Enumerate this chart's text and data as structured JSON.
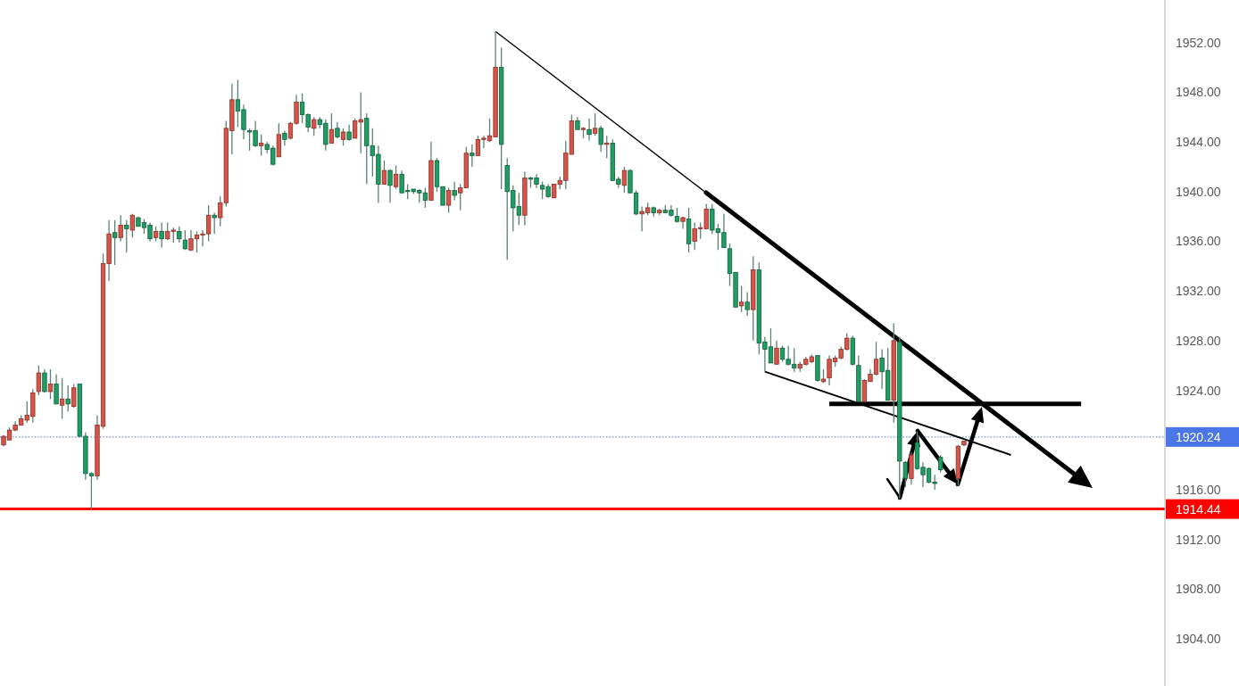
{
  "chart_data": {
    "type": "candlestick",
    "categories": [
      null,
      null,
      null,
      null,
      null,
      null,
      null,
      null,
      null,
      null,
      null,
      null,
      null,
      null,
      null,
      null,
      null,
      null,
      null,
      null,
      null,
      null,
      null,
      null,
      null,
      null,
      null,
      null,
      null,
      null,
      null,
      null,
      null,
      null,
      null,
      null,
      null,
      null,
      null,
      null,
      null,
      null,
      null,
      null,
      null,
      null,
      null,
      null,
      null,
      null,
      null,
      null,
      null,
      null,
      null,
      null,
      null,
      null,
      null,
      null,
      null,
      null,
      null,
      null,
      null,
      null,
      null,
      null,
      null,
      null,
      null,
      null,
      null,
      null,
      null,
      null,
      null,
      null,
      null,
      null,
      null,
      null,
      null,
      null,
      null,
      null,
      null,
      null,
      null,
      null,
      null,
      null,
      null,
      null,
      null,
      null,
      null,
      null,
      null,
      null,
      null,
      null,
      null,
      null,
      null,
      null,
      null,
      null,
      null,
      null,
      null,
      null,
      null,
      null,
      null,
      null,
      null,
      null,
      null,
      null,
      null,
      null,
      null,
      null,
      null,
      null,
      null,
      null,
      null,
      null,
      null,
      null,
      null,
      null,
      null,
      null,
      null,
      null,
      null,
      null,
      null,
      null,
      null,
      null,
      null,
      null,
      null,
      null,
      null,
      null,
      null,
      null,
      null,
      null,
      null,
      null,
      null,
      null,
      null,
      null,
      null,
      null,
      null,
      null,
      null,
      null,
      null,
      null,
      null,
      null,
      null,
      null,
      null,
      null,
      null,
      null,
      null,
      null,
      null,
      null,
      null,
      null,
      null,
      null,
      null,
      null,
      null,
      null,
      null,
      null,
      null,
      null,
      null,
      null,
      null,
      null,
      null,
      null,
      null
    ],
    "ohlc": [
      [
        1919.6,
        1920.4,
        1919.5,
        1920.3
      ],
      [
        1920.0,
        1921.0,
        1920.0,
        1920.8
      ],
      [
        1920.8,
        1921.5,
        1920.7,
        1921.2
      ],
      [
        1921.2,
        1922.0,
        1921.2,
        1921.7
      ],
      [
        1921.6,
        1923.1,
        1921.4,
        1922.0
      ],
      [
        1921.9,
        1924.1,
        1921.4,
        1923.8
      ],
      [
        1923.9,
        1926.0,
        1923.6,
        1925.4
      ],
      [
        1925.4,
        1925.7,
        1923.8,
        1923.9
      ],
      [
        1923.9,
        1925.7,
        1923.3,
        1924.5
      ],
      [
        1924.5,
        1925.3,
        1922.9,
        1922.9
      ],
      [
        1922.8,
        1925.0,
        1921.7,
        1923.3
      ],
      [
        1923.3,
        1924.4,
        1922.3,
        1922.9
      ],
      [
        1922.7,
        1924.5,
        1922.6,
        1924.2
      ],
      [
        1924.5,
        1924.5,
        1920.2,
        1920.3
      ],
      [
        1920.3,
        1920.6,
        1916.8,
        1917.3
      ],
      [
        1917.3,
        1917.4,
        1914.4,
        1917.1
      ],
      [
        1917.1,
        1922.0,
        1916.8,
        1921.2
      ],
      [
        1921.1,
        1935.0,
        1920.9,
        1934.2
      ],
      [
        1934.2,
        1937.7,
        1932.8,
        1936.6
      ],
      [
        1936.7,
        1937.7,
        1934.1,
        1936.3
      ],
      [
        1936.3,
        1938.1,
        1936.0,
        1937.3
      ],
      [
        1937.3,
        1937.7,
        1935.1,
        1937.0
      ],
      [
        1936.9,
        1938.2,
        1936.3,
        1938.1
      ],
      [
        1937.9,
        1938.0,
        1937.2,
        1937.2
      ],
      [
        1937.5,
        1937.8,
        1936.6,
        1937.1
      ],
      [
        1937.3,
        1937.5,
        1936.0,
        1936.2
      ],
      [
        1936.3,
        1937.2,
        1936.0,
        1936.8
      ],
      [
        1936.8,
        1937.5,
        1935.5,
        1936.2
      ],
      [
        1936.2,
        1937.5,
        1936.1,
        1936.8
      ],
      [
        1936.8,
        1937.1,
        1935.9,
        1936.9
      ],
      [
        1936.8,
        1937.2,
        1935.9,
        1936.2
      ],
      [
        1936.1,
        1936.9,
        1935.3,
        1935.4
      ],
      [
        1935.3,
        1936.9,
        1935.2,
        1936.2
      ],
      [
        1936.2,
        1936.8,
        1935.1,
        1936.5
      ],
      [
        1936.5,
        1936.9,
        1935.6,
        1936.6
      ],
      [
        1936.6,
        1938.9,
        1936.0,
        1938.1
      ],
      [
        1938.1,
        1938.3,
        1936.6,
        1937.9
      ],
      [
        1937.9,
        1939.6,
        1937.2,
        1939.1
      ],
      [
        1939.1,
        1945.7,
        1938.8,
        1945.1
      ],
      [
        1944.9,
        1948.7,
        1943.0,
        1947.4
      ],
      [
        1947.4,
        1949.0,
        1945.2,
        1946.5
      ],
      [
        1946.6,
        1947.0,
        1944.2,
        1945.0
      ],
      [
        1944.9,
        1945.1,
        1943.3,
        1944.8
      ],
      [
        1944.9,
        1945.7,
        1943.6,
        1943.7
      ],
      [
        1943.7,
        1944.6,
        1942.9,
        1943.9
      ],
      [
        1943.8,
        1944.0,
        1943.1,
        1943.4
      ],
      [
        1943.5,
        1943.7,
        1942.1,
        1942.2
      ],
      [
        1942.8,
        1945.5,
        1942.8,
        1944.6
      ],
      [
        1944.7,
        1944.9,
        1943.7,
        1944.2
      ],
      [
        1944.3,
        1945.6,
        1944.2,
        1945.5
      ],
      [
        1945.5,
        1947.8,
        1945.4,
        1947.2
      ],
      [
        1947.2,
        1947.9,
        1945.5,
        1946.2
      ],
      [
        1946.2,
        1946.3,
        1944.8,
        1945.2
      ],
      [
        1945.1,
        1946.0,
        1944.5,
        1945.8
      ],
      [
        1945.8,
        1946.0,
        1945.1,
        1945.4
      ],
      [
        1945.5,
        1945.8,
        1943.3,
        1943.8
      ],
      [
        1943.9,
        1946.3,
        1943.9,
        1945.0
      ],
      [
        1945.1,
        1945.6,
        1944.3,
        1944.4
      ],
      [
        1944.2,
        1945.1,
        1943.7,
        1944.8
      ],
      [
        1944.8,
        1945.4,
        1944.1,
        1944.2
      ],
      [
        1944.3,
        1945.9,
        1944.3,
        1945.7
      ],
      [
        1945.6,
        1948.0,
        1943.1,
        1945.8
      ],
      [
        1945.9,
        1946.3,
        1940.6,
        1943.7
      ],
      [
        1943.7,
        1945.1,
        1941.2,
        1942.9
      ],
      [
        1943.0,
        1943.7,
        1939.1,
        1940.6
      ],
      [
        1940.6,
        1942.5,
        1940.6,
        1941.7
      ],
      [
        1941.7,
        1941.8,
        1939.1,
        1940.5
      ],
      [
        1940.4,
        1942.1,
        1940.2,
        1941.4
      ],
      [
        1941.4,
        1941.7,
        1939.9,
        1939.9
      ],
      [
        1940.1,
        1940.6,
        1939.4,
        1940.0
      ],
      [
        1940.2,
        1940.2,
        1939.8,
        1940.0
      ],
      [
        1940.1,
        1940.2,
        1939.1,
        1939.9
      ],
      [
        1939.9,
        1940.3,
        1938.7,
        1939.3
      ],
      [
        1939.3,
        1944.0,
        1939.3,
        1942.5
      ],
      [
        1942.5,
        1942.7,
        1940.0,
        1940.4
      ],
      [
        1940.4,
        1940.4,
        1938.9,
        1938.9
      ],
      [
        1938.9,
        1940.3,
        1938.3,
        1940.1
      ],
      [
        1940.1,
        1940.8,
        1939.3,
        1939.7
      ],
      [
        1939.9,
        1940.6,
        1938.5,
        1940.3
      ],
      [
        1940.3,
        1943.6,
        1940.3,
        1943.1
      ],
      [
        1943.1,
        1943.8,
        1942.0,
        1942.9
      ],
      [
        1942.9,
        1944.5,
        1942.9,
        1944.2
      ],
      [
        1944.2,
        1944.5,
        1943.5,
        1944.3
      ],
      [
        1944.1,
        1945.9,
        1944.0,
        1944.5
      ],
      [
        1944.4,
        1952.9,
        1944.4,
        1950.0
      ],
      [
        1950.0,
        1951.6,
        1940.2,
        1943.8
      ],
      [
        1942.1,
        1942.7,
        1934.5,
        1940.0
      ],
      [
        1940.1,
        1940.5,
        1936.8,
        1938.7
      ],
      [
        1938.8,
        1939.9,
        1937.3,
        1938.1
      ],
      [
        1938.1,
        1941.6,
        1937.3,
        1941.1
      ],
      [
        1941.1,
        1941.2,
        1940.3,
        1941.0
      ],
      [
        1941.1,
        1941.4,
        1940.3,
        1940.6
      ],
      [
        1940.5,
        1940.8,
        1939.4,
        1940.2
      ],
      [
        1940.4,
        1940.6,
        1939.5,
        1939.6
      ],
      [
        1939.5,
        1940.6,
        1939.5,
        1940.6
      ],
      [
        1940.6,
        1941.2,
        1940.2,
        1940.9
      ],
      [
        1940.9,
        1944.1,
        1940.2,
        1943.1
      ],
      [
        1943.0,
        1946.2,
        1943.0,
        1945.7
      ],
      [
        1945.7,
        1946.0,
        1945.0,
        1945.0
      ],
      [
        1945.0,
        1945.2,
        1944.3,
        1945.1
      ],
      [
        1945.0,
        1945.9,
        1944.1,
        1944.6
      ],
      [
        1944.7,
        1946.3,
        1944.5,
        1945.1
      ],
      [
        1945.1,
        1945.3,
        1943.2,
        1943.8
      ],
      [
        1943.8,
        1944.5,
        1942.7,
        1943.9
      ],
      [
        1943.9,
        1944.2,
        1940.9,
        1940.9
      ],
      [
        1941.0,
        1941.2,
        1940.3,
        1940.6
      ],
      [
        1940.5,
        1942.0,
        1939.9,
        1941.7
      ],
      [
        1941.7,
        1941.8,
        1939.9,
        1939.9
      ],
      [
        1939.9,
        1940.1,
        1938.1,
        1938.2
      ],
      [
        1938.2,
        1938.8,
        1936.8,
        1938.4
      ],
      [
        1938.3,
        1939.1,
        1938.1,
        1938.7
      ],
      [
        1938.7,
        1938.8,
        1938.0,
        1938.3
      ],
      [
        1938.3,
        1938.6,
        1938.1,
        1938.5
      ],
      [
        1938.5,
        1938.9,
        1938.3,
        1938.3
      ],
      [
        1938.5,
        1938.9,
        1938.0,
        1938.1
      ],
      [
        1938.0,
        1938.7,
        1937.5,
        1937.6
      ],
      [
        1937.6,
        1938.0,
        1937.0,
        1937.9
      ],
      [
        1937.8,
        1938.7,
        1935.1,
        1935.8
      ],
      [
        1936.0,
        1937.5,
        1935.3,
        1937.0
      ],
      [
        1937.0,
        1937.5,
        1936.2,
        1937.1
      ],
      [
        1937.0,
        1939.0,
        1937.0,
        1938.6
      ],
      [
        1938.6,
        1939.0,
        1936.6,
        1936.9
      ],
      [
        1937.0,
        1937.4,
        1935.3,
        1936.7
      ],
      [
        1936.7,
        1938.2,
        1935.5,
        1935.5
      ],
      [
        1935.4,
        1935.8,
        1932.4,
        1933.4
      ],
      [
        1933.5,
        1933.5,
        1930.7,
        1930.7
      ],
      [
        1930.8,
        1932.4,
        1930.3,
        1931.1
      ],
      [
        1931.1,
        1931.9,
        1930.0,
        1930.5
      ],
      [
        1930.5,
        1934.8,
        1928.0,
        1933.7
      ],
      [
        1933.7,
        1934.3,
        1926.9,
        1927.8
      ],
      [
        1927.9,
        1928.3,
        1925.5,
        1927.3
      ],
      [
        1927.5,
        1929.0,
        1926.2,
        1926.2
      ],
      [
        1926.1,
        1928.0,
        1926.1,
        1927.4
      ],
      [
        1927.4,
        1927.6,
        1926.3,
        1926.5
      ],
      [
        1926.5,
        1927.6,
        1926.0,
        1926.1
      ],
      [
        1926.1,
        1927.4,
        1925.5,
        1925.8
      ],
      [
        1925.8,
        1926.3,
        1925.5,
        1926.1
      ],
      [
        1926.1,
        1926.7,
        1926.0,
        1926.5
      ],
      [
        1926.3,
        1926.9,
        1926.2,
        1926.7
      ],
      [
        1926.8,
        1926.8,
        1924.7,
        1924.8
      ],
      [
        1924.7,
        1925.7,
        1924.6,
        1924.9
      ],
      [
        1925.0,
        1926.8,
        1924.4,
        1926.5
      ],
      [
        1926.3,
        1926.8,
        1925.9,
        1926.6
      ],
      [
        1926.6,
        1927.5,
        1926.5,
        1927.3
      ],
      [
        1927.3,
        1928.6,
        1927.2,
        1928.2
      ],
      [
        1928.2,
        1928.4,
        1926.0,
        1926.1
      ],
      [
        1926.0,
        1926.8,
        1923.1,
        1923.1
      ],
      [
        1923.1,
        1924.9,
        1923.1,
        1924.8
      ],
      [
        1924.7,
        1925.7,
        1924.7,
        1925.3
      ],
      [
        1925.3,
        1927.9,
        1925.2,
        1926.5
      ],
      [
        1926.6,
        1927.3,
        1924.1,
        1925.5
      ],
      [
        1925.6,
        1927.4,
        1923.2,
        1923.2
      ],
      [
        1923.2,
        1929.4,
        1921.4,
        1928.0
      ],
      [
        1927.9,
        1928.3,
        1915.3,
        1918.3
      ],
      [
        1918.2,
        1918.3,
        1916.2,
        1916.9
      ],
      [
        1916.9,
        1919.0,
        1916.4,
        1918.8
      ],
      [
        1919.8,
        1920.7,
        1917.6,
        1917.7
      ],
      [
        1917.8,
        1918.2,
        1916.2,
        1917.2
      ],
      [
        1917.7,
        1917.8,
        1916.5,
        1916.6
      ],
      [
        1916.6,
        1917.2,
        1916.0,
        1916.5
      ],
      [
        1918.6,
        1918.8,
        1917.4,
        1917.6
      ],
      null,
      null,
      [
        1916.9,
        1919.6,
        1916.3,
        1919.5
      ],
      [
        1919.6,
        1919.9,
        1919.5,
        1919.9
      ],
      null,
      null,
      null,
      null,
      null,
      null,
      null,
      null,
      null,
      null,
      null,
      null,
      null,
      null,
      null,
      null,
      null,
      null,
      null,
      null,
      null,
      null,
      null,
      null,
      null,
      null,
      null,
      null,
      null,
      null,
      null,
      null,
      null,
      null
    ],
    "series": [
      {
        "type": "line",
        "color": "#000000",
        "values": [
          null,
          null,
          null,
          null,
          null,
          null,
          null,
          null,
          null,
          null,
          null,
          null,
          null,
          null,
          null,
          null,
          null,
          null,
          null,
          null,
          null,
          null,
          null,
          null,
          null,
          null,
          null,
          null,
          null,
          null,
          null,
          null,
          null,
          null,
          null,
          null,
          null,
          null,
          null,
          null,
          null,
          null,
          null,
          null,
          null,
          null,
          null,
          null,
          null,
          null,
          null,
          null,
          null,
          null,
          null,
          null,
          null,
          null,
          null,
          null,
          null,
          null,
          null,
          null,
          null,
          null,
          null,
          null,
          null,
          null,
          null,
          null,
          null,
          null,
          null,
          null,
          null,
          null,
          null,
          null,
          null,
          null,
          null,
          null,
          1952.9,
          null,
          null,
          null,
          null,
          null,
          null,
          null,
          null,
          null,
          null,
          null,
          null,
          null,
          null,
          null,
          null,
          null,
          null,
          null,
          null,
          null,
          null,
          null,
          null,
          null,
          null,
          null,
          null,
          null,
          null,
          null,
          null,
          null,
          null,
          null,
          1939.9,
          null,
          null,
          null,
          null,
          null,
          null,
          null,
          null,
          null,
          null,
          null,
          null,
          null,
          null,
          null,
          null,
          null,
          null,
          null,
          null,
          null,
          null,
          null,
          null,
          null,
          null,
          null,
          null,
          null,
          null,
          null,
          null,
          null,
          null,
          null,
          null,
          null,
          null,
          null,
          null,
          null,
          null,
          null,
          null,
          null,
          null,
          null,
          null,
          null,
          null,
          null,
          null,
          null,
          null,
          null,
          null,
          null,
          null,
          null,
          null,
          null,
          null,
          null,
          null,
          null,
          null,
          null,
          null,
          null,
          null,
          null,
          null,
          null,
          null,
          null,
          null,
          null,
          null
        ]
      },
      {
        "type": "line",
        "color": "#000000",
        "values": [
          null,
          null,
          null,
          null,
          null,
          null,
          null,
          null,
          null,
          null,
          null,
          null,
          null,
          null,
          null,
          null,
          null,
          null,
          null,
          null,
          null,
          null,
          null,
          null,
          null,
          null,
          null,
          null,
          null,
          null,
          null,
          null,
          null,
          null,
          null,
          null,
          null,
          null,
          null,
          null,
          null,
          null,
          null,
          null,
          null,
          null,
          null,
          null,
          null,
          null,
          null,
          null,
          null,
          null,
          null,
          null,
          null,
          null,
          null,
          null,
          null,
          null,
          null,
          null,
          null,
          null,
          null,
          null,
          null,
          null,
          null,
          null,
          null,
          null,
          null,
          null,
          null,
          null,
          null,
          null,
          null,
          null,
          null,
          null,
          null,
          null,
          null,
          null,
          null,
          null,
          null,
          null,
          null,
          null,
          null,
          null,
          null,
          null,
          null,
          null,
          null,
          null,
          null,
          null,
          null,
          null,
          null,
          null,
          null,
          null,
          null,
          null,
          null,
          null,
          null,
          null,
          null,
          null,
          null,
          null,
          null,
          null,
          null,
          null,
          null,
          null,
          null,
          null,
          null,
          null,
          null,
          null,
          null,
          null,
          null,
          null,
          null,
          null,
          null,
          null,
          null,
          1922.9,
          null,
          null,
          null,
          null,
          null,
          null,
          null,
          null,
          null,
          null,
          null,
          null,
          null,
          null,
          null,
          null,
          null,
          null,
          null,
          null,
          null,
          null,
          null,
          null,
          null,
          null,
          null,
          null,
          null,
          null,
          null,
          null,
          null,
          null,
          null,
          null,
          null,
          null,
          null,
          null,
          null,
          null,
          1922.9,
          null,
          null,
          null,
          null,
          null,
          null,
          null,
          null,
          null,
          null,
          null,
          null,
          null,
          null
        ]
      },
      {
        "type": "line",
        "color": "#000000",
        "values": [
          null,
          null,
          null,
          null,
          null,
          null,
          null,
          null,
          null,
          null,
          null,
          null,
          null,
          null,
          null,
          null,
          null,
          null,
          null,
          null,
          null,
          null,
          null,
          null,
          null,
          null,
          null,
          null,
          null,
          null,
          null,
          null,
          null,
          null,
          null,
          null,
          null,
          null,
          null,
          null,
          null,
          null,
          null,
          null,
          null,
          null,
          null,
          null,
          null,
          null,
          null,
          null,
          null,
          null,
          null,
          null,
          null,
          null,
          null,
          null,
          null,
          null,
          null,
          null,
          null,
          null,
          null,
          null,
          null,
          null,
          null,
          null,
          null,
          null,
          null,
          null,
          null,
          null,
          null,
          null,
          null,
          null,
          null,
          null,
          null,
          null,
          null,
          null,
          null,
          null,
          null,
          null,
          null,
          null,
          null,
          null,
          null,
          null,
          null,
          null,
          null,
          null,
          null,
          null,
          null,
          null,
          null,
          null,
          null,
          null,
          null,
          null,
          null,
          null,
          null,
          null,
          null,
          null,
          null,
          null,
          null,
          null,
          null,
          null,
          null,
          null,
          null,
          null,
          null,
          null,
          1925.5,
          null,
          null,
          null,
          null,
          null,
          null,
          null,
          null,
          null,
          null,
          null,
          null,
          null,
          null,
          null,
          null,
          null,
          null,
          null,
          null,
          null,
          null,
          null,
          null,
          null,
          null,
          null,
          null,
          null,
          null,
          null,
          null,
          null,
          null,
          null,
          null,
          null,
          null,
          null,
          null,
          null,
          1918.8,
          null,
          null,
          null,
          null,
          null,
          null,
          null,
          null,
          null,
          null,
          null,
          null,
          null,
          null,
          null,
          null,
          null,
          null,
          null,
          null,
          null,
          null,
          null,
          null,
          null,
          null
        ]
      }
    ],
    "ylim": [
      1900.19,
      1955.43
    ],
    "yticks": [
      {
        "value": 1904,
        "label": "1904.00"
      },
      {
        "value": 1908,
        "label": "1908.00"
      },
      {
        "value": 1912,
        "label": "1912.00"
      },
      {
        "value": 1916,
        "label": "1916.00"
      },
      {
        "value": 1924,
        "label": "1924.00"
      },
      {
        "value": 1928,
        "label": "1928.00"
      },
      {
        "value": 1932,
        "label": "1932.00"
      },
      {
        "value": 1936,
        "label": "1936.00"
      },
      {
        "value": 1940,
        "label": "1940.00"
      },
      {
        "value": 1944,
        "label": "1944.00"
      },
      {
        "value": 1948,
        "label": "1948.00"
      },
      {
        "value": 1952,
        "label": "1952.00"
      }
    ],
    "ref_lines": [
      {
        "axis": "y",
        "value": 1920.24,
        "label": "1920.24",
        "color": "#4a76e8",
        "line_style": "dotted"
      },
      {
        "axis": "y",
        "value": 1914.44,
        "label": "1914.44",
        "color": "#ff0000",
        "line_style": "solid"
      }
    ],
    "tick_labels": "y"
  }
}
